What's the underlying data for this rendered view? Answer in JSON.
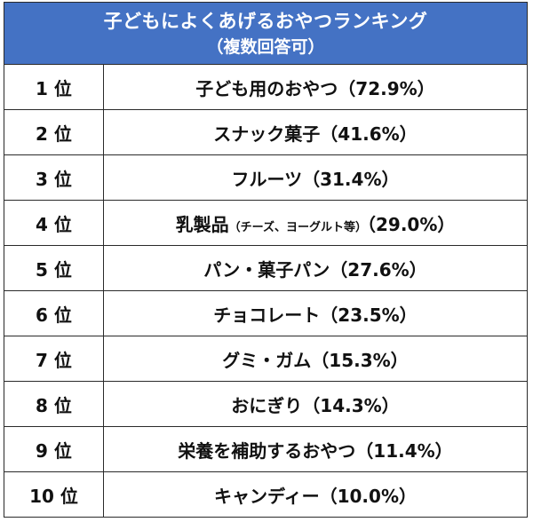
{
  "header": {
    "title": "子どもによくあげるおやつランキング",
    "subtitle": "（複数回答可）"
  },
  "colors": {
    "header_background": "#4472c4",
    "header_text": "#ffffff",
    "border": "#2a2a2a"
  },
  "rows": [
    {
      "rank": "1 位",
      "item": "子ども用のおやつ（72.9%）"
    },
    {
      "rank": "2 位",
      "item": "スナック菓子（41.6%）"
    },
    {
      "rank": "3 位",
      "item": "フルーツ（31.4%）"
    },
    {
      "rank": "4 位",
      "item": "乳製品",
      "note": "（チーズ、ヨーグルト等）",
      "item_tail": "（29.0%）"
    },
    {
      "rank": "5 位",
      "item": "パン・菓子パン（27.6%）"
    },
    {
      "rank": "6 位",
      "item": "チョコレート（23.5%）"
    },
    {
      "rank": "7 位",
      "item": "グミ・ガム（15.3%）"
    },
    {
      "rank": "8 位",
      "item": "おにぎり（14.3%）"
    },
    {
      "rank": "9 位",
      "item": "栄養を補助するおやつ（11.4%）"
    },
    {
      "rank": "10 位",
      "item": "キャンディー（10.0%）"
    }
  ]
}
